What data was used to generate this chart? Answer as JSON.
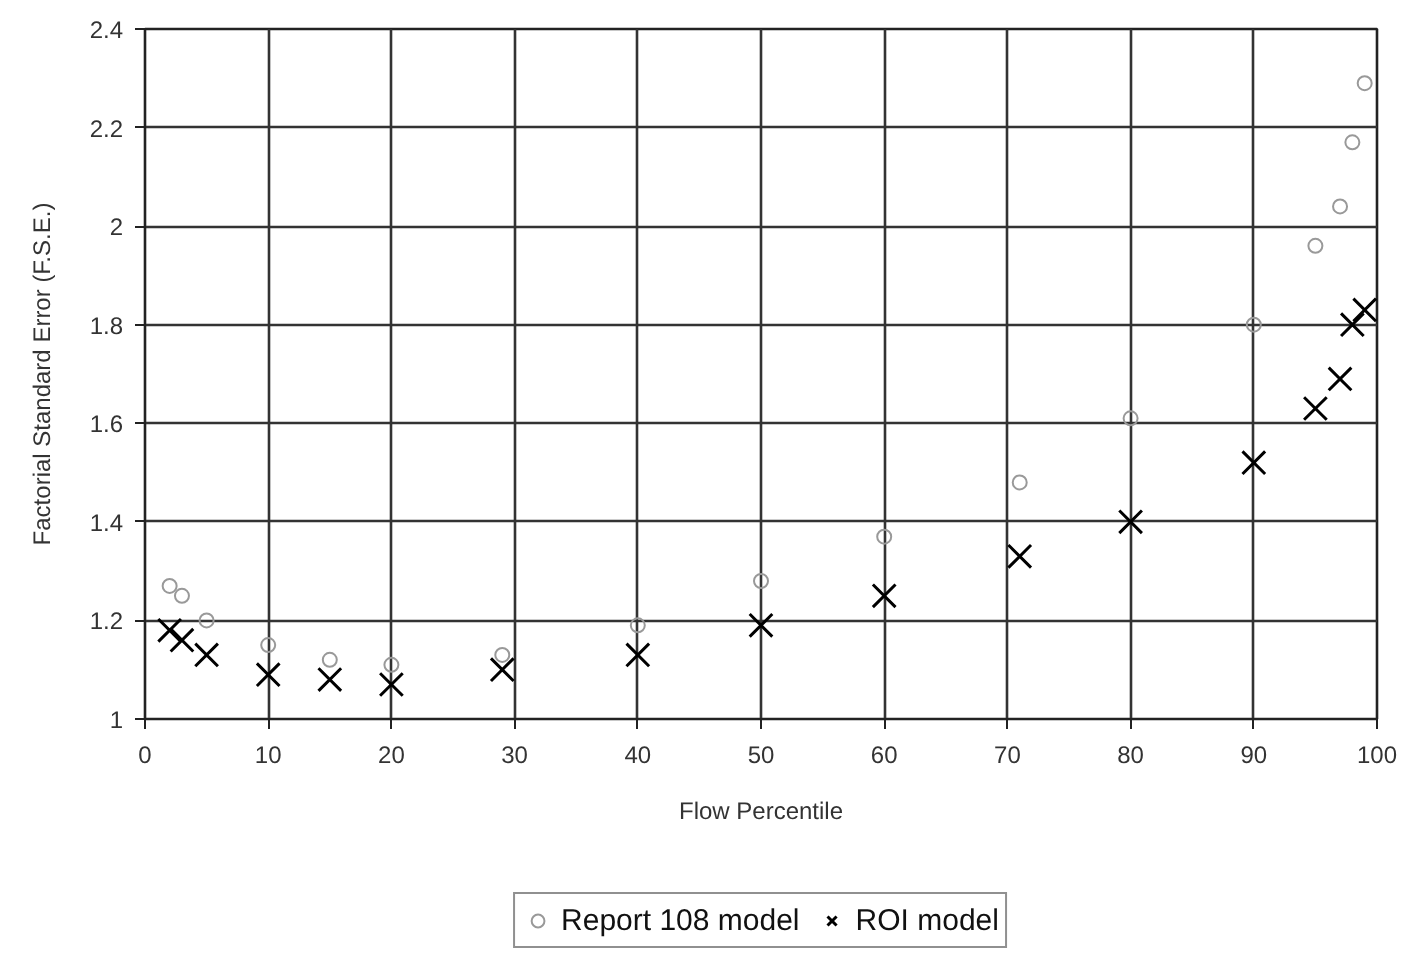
{
  "chart_data": {
    "type": "scatter",
    "xlabel": "Flow Percentile",
    "ylabel": "Factorial Standard Error (F.S.E.)",
    "x": [
      2,
      3,
      5,
      10,
      15,
      20,
      29,
      40,
      50,
      60,
      71,
      80,
      90,
      95,
      97,
      98,
      99
    ],
    "xlim": [
      0,
      100
    ],
    "xticks": [
      0,
      10,
      20,
      30,
      40,
      50,
      60,
      70,
      80,
      90,
      100
    ],
    "ylim": [
      1,
      2.4
    ],
    "yticks": [
      1,
      1.2,
      1.4,
      1.6,
      1.8,
      2,
      2.2,
      2.4
    ],
    "grid": true,
    "legend": "bottom",
    "series": [
      {
        "name": "Report 108 model",
        "color": "#999999",
        "marker": "circle",
        "values": [
          1.27,
          1.25,
          1.2,
          1.15,
          1.12,
          1.11,
          1.13,
          1.19,
          1.28,
          1.37,
          1.48,
          1.61,
          1.8,
          1.96,
          2.04,
          2.17,
          2.29
        ]
      },
      {
        "name": "ROI model",
        "color": "#000000",
        "marker": "cross",
        "values": [
          1.18,
          1.16,
          1.13,
          1.09,
          1.08,
          1.07,
          1.1,
          1.13,
          1.19,
          1.25,
          1.33,
          1.4,
          1.52,
          1.63,
          1.69,
          1.8,
          1.83
        ]
      }
    ]
  }
}
